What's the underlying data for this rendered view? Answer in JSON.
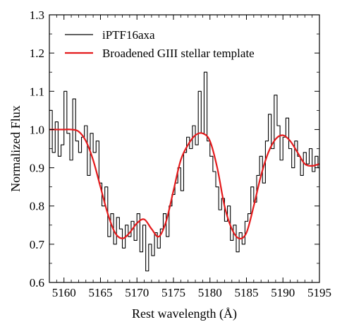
{
  "chart_data": {
    "type": "line",
    "xlabel": "Rest wavelength (Å)",
    "ylabel": "Normalized Flux",
    "xlim": [
      5158,
      5195
    ],
    "ylim": [
      0.6,
      1.3
    ],
    "xticks": [
      5160,
      5165,
      5170,
      5175,
      5180,
      5185,
      5190,
      5195
    ],
    "yticks": [
      0.6,
      0.7,
      0.8,
      0.9,
      1.0,
      1.1,
      1.2,
      1.3
    ],
    "xtick_labels": [
      "5160",
      "5165",
      "5170",
      "5175",
      "5180",
      "5185",
      "5190",
      "5195"
    ],
    "ytick_labels": [
      "0.6",
      "0.7",
      "0.8",
      "0.9",
      "1.0",
      "1.1",
      "1.2",
      "1.3"
    ],
    "grid": false,
    "legend_position": "top-left",
    "series": [
      {
        "name": "iPTF16axa",
        "color": "#000000",
        "style": "steps",
        "x": [
          5158.0,
          5158.4,
          5158.8,
          5159.2,
          5159.6,
          5160.0,
          5160.4,
          5160.8,
          5161.2,
          5161.6,
          5162.0,
          5162.4,
          5162.8,
          5163.2,
          5163.6,
          5164.0,
          5164.4,
          5164.8,
          5165.2,
          5165.6,
          5166.0,
          5166.4,
          5166.8,
          5167.2,
          5167.6,
          5168.0,
          5168.4,
          5168.8,
          5169.2,
          5169.6,
          5170.0,
          5170.4,
          5170.8,
          5171.2,
          5171.6,
          5172.0,
          5172.4,
          5172.8,
          5173.2,
          5173.6,
          5174.0,
          5174.4,
          5174.8,
          5175.2,
          5175.6,
          5176.0,
          5176.4,
          5176.8,
          5177.2,
          5177.6,
          5178.0,
          5178.4,
          5178.8,
          5179.2,
          5179.6,
          5180.0,
          5180.4,
          5180.8,
          5181.2,
          5181.6,
          5182.0,
          5182.4,
          5182.8,
          5183.2,
          5183.6,
          5184.0,
          5184.4,
          5184.8,
          5185.2,
          5185.6,
          5186.0,
          5186.4,
          5186.8,
          5187.2,
          5187.6,
          5188.0,
          5188.4,
          5188.8,
          5189.2,
          5189.6,
          5190.0,
          5190.4,
          5190.8,
          5191.2,
          5191.6,
          5192.0,
          5192.4,
          5192.8,
          5193.2,
          5193.6,
          5194.0,
          5194.4,
          5194.8
        ],
        "y": [
          1.05,
          0.94,
          1.02,
          0.93,
          0.96,
          1.1,
          0.99,
          0.92,
          1.08,
          0.97,
          0.94,
          0.98,
          1.01,
          0.88,
          0.99,
          0.94,
          0.97,
          0.86,
          0.8,
          0.85,
          0.72,
          0.78,
          0.7,
          0.77,
          0.74,
          0.69,
          0.75,
          0.72,
          0.76,
          0.71,
          0.78,
          0.68,
          0.75,
          0.63,
          0.7,
          0.67,
          0.73,
          0.69,
          0.74,
          0.78,
          0.72,
          0.8,
          0.83,
          0.86,
          0.9,
          0.84,
          0.94,
          0.98,
          0.95,
          1.01,
          0.96,
          1.1,
          0.99,
          1.15,
          0.97,
          0.93,
          0.89,
          0.85,
          0.79,
          0.82,
          0.76,
          0.8,
          0.71,
          0.75,
          0.68,
          0.73,
          0.7,
          0.76,
          0.78,
          0.85,
          0.81,
          0.88,
          0.93,
          0.86,
          0.97,
          1.04,
          0.95,
          1.09,
          1.01,
          0.92,
          0.98,
          1.03,
          0.95,
          0.9,
          0.97,
          0.93,
          0.88,
          0.94,
          0.91,
          0.95,
          0.89,
          0.93,
          0.9
        ]
      },
      {
        "name": "Broadened GIII stellar template",
        "color": "#e41a1c",
        "style": "smooth",
        "x": [
          5158,
          5159,
          5160,
          5161,
          5162,
          5163,
          5164,
          5165,
          5166,
          5167,
          5168,
          5169,
          5170,
          5171,
          5172,
          5173,
          5174,
          5175,
          5176,
          5177,
          5178,
          5179,
          5180,
          5181,
          5182,
          5183,
          5184,
          5185,
          5186,
          5187,
          5188,
          5189,
          5190,
          5191,
          5192,
          5193,
          5194,
          5195
        ],
        "y": [
          1.0,
          1.0,
          1.0,
          1.0,
          0.995,
          0.97,
          0.92,
          0.85,
          0.78,
          0.73,
          0.715,
          0.73,
          0.755,
          0.765,
          0.74,
          0.72,
          0.76,
          0.84,
          0.92,
          0.96,
          0.985,
          0.99,
          0.97,
          0.9,
          0.8,
          0.74,
          0.715,
          0.73,
          0.8,
          0.88,
          0.94,
          0.975,
          0.985,
          0.97,
          0.94,
          0.91,
          0.905,
          0.91
        ]
      }
    ]
  }
}
